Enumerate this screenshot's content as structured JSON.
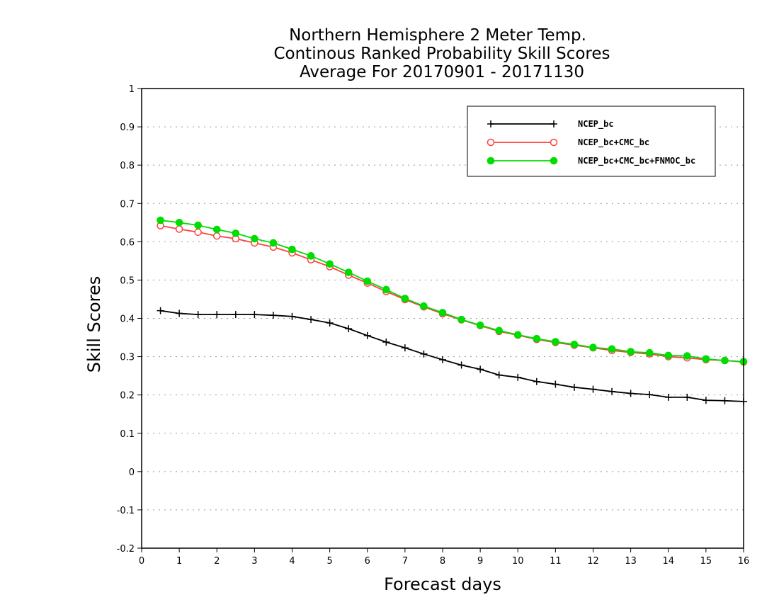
{
  "chart_data": {
    "type": "line",
    "title_lines": [
      "Northern Hemisphere 2 Meter Temp.",
      "Continous Ranked Probability Skill Scores",
      "Average For 20170901 - 20171130"
    ],
    "xlabel": "Forecast days",
    "ylabel": "Skill Scores",
    "xlim": [
      0,
      16
    ],
    "ylim": [
      -0.2,
      1
    ],
    "xticks": [
      "0",
      "1",
      "2",
      "3",
      "4",
      "5",
      "6",
      "7",
      "8",
      "9",
      "10",
      "11",
      "12",
      "13",
      "14",
      "15",
      "16"
    ],
    "yticks": [
      "-0.2",
      "-0.1",
      "0",
      "0.1",
      "0.2",
      "0.3",
      "0.4",
      "0.5",
      "0.6",
      "0.7",
      "0.8",
      "0.9",
      "1"
    ],
    "grid": "horizontal dotted",
    "legend_position": "top-right",
    "x": [
      0.5,
      1,
      1.5,
      2,
      2.5,
      3,
      3.5,
      4,
      4.5,
      5,
      5.5,
      6,
      6.5,
      7,
      7.5,
      8,
      8.5,
      9,
      9.5,
      10,
      10.5,
      11,
      11.5,
      12,
      12.5,
      13,
      13.5,
      14,
      14.5,
      15,
      15.5,
      16
    ],
    "series": [
      {
        "name": "NCEP_bc",
        "color": "#000000",
        "marker": "plus",
        "values": [
          0.42,
          0.413,
          0.41,
          0.41,
          0.41,
          0.41,
          0.408,
          0.405,
          0.397,
          0.388,
          0.373,
          0.355,
          0.338,
          0.323,
          0.307,
          0.292,
          0.278,
          0.267,
          0.252,
          0.246,
          0.235,
          0.228,
          0.22,
          0.215,
          0.209,
          0.204,
          0.201,
          0.194,
          0.194,
          0.186,
          0.185,
          0.183
        ]
      },
      {
        "name": "NCEP_bc+CMC_bc",
        "color": "#ff4040",
        "marker": "open-circle",
        "values": [
          0.642,
          0.633,
          0.625,
          0.615,
          0.608,
          0.597,
          0.586,
          0.571,
          0.553,
          0.535,
          0.513,
          0.492,
          0.47,
          0.449,
          0.43,
          0.412,
          0.396,
          0.381,
          0.366,
          0.356,
          0.345,
          0.337,
          0.33,
          0.323,
          0.316,
          0.311,
          0.307,
          0.3,
          0.297,
          0.292,
          0.29,
          0.286
        ]
      },
      {
        "name": "NCEP_bc+CMC_bc+FNMOC_bc",
        "color": "#00dd00",
        "marker": "filled-circle",
        "values": [
          0.656,
          0.65,
          0.643,
          0.632,
          0.622,
          0.608,
          0.597,
          0.58,
          0.563,
          0.542,
          0.52,
          0.497,
          0.475,
          0.452,
          0.432,
          0.415,
          0.397,
          0.382,
          0.368,
          0.357,
          0.347,
          0.339,
          0.332,
          0.324,
          0.32,
          0.313,
          0.31,
          0.303,
          0.302,
          0.294,
          0.29,
          0.287
        ]
      }
    ]
  }
}
